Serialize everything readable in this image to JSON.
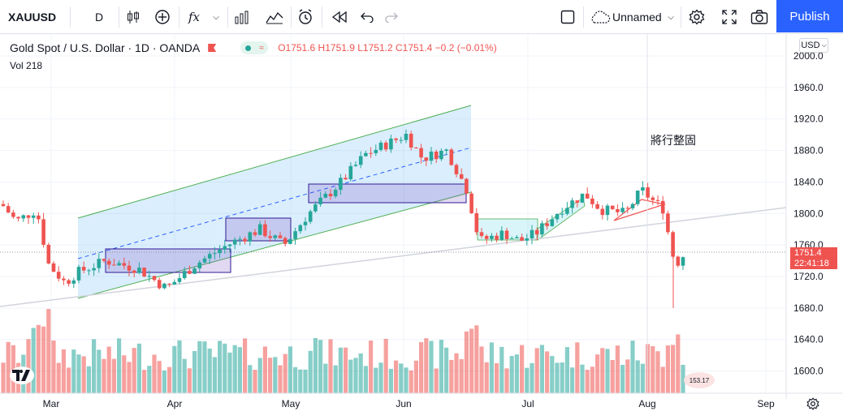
{
  "toolbar": {
    "symbol": "XAUUSD",
    "interval": "D",
    "fx_label": "fx",
    "layout_name": "Unnamed",
    "publish_label": "Publish"
  },
  "legend": {
    "title": "Gold Spot / U.S. Dollar · 1D · OANDA",
    "ohlc": "O1751.6 H1751.9 L1751.2 C1751.4 −0.2 (−0.01%)",
    "volume": "Vol  218"
  },
  "price_axis": {
    "currency": "USD",
    "labels": [
      "2000.0",
      "1960.0",
      "1920.0",
      "1880.0",
      "1840.0",
      "1800.0",
      "1760.0",
      "1720.0",
      "1680.0",
      "1640.0",
      "1600.0"
    ],
    "last_price": "1751.4",
    "countdown": "22:41:18"
  },
  "time_axis": {
    "labels": [
      "Mar",
      "Apr",
      "May",
      "Jun",
      "Jul",
      "Aug",
      "Sep"
    ]
  },
  "annotation": "將行整固",
  "volume_badge": "153.17",
  "colors": {
    "up": "#26a69a",
    "down": "#ef5350",
    "accent": "#2962ff",
    "channel": "#4caf50"
  }
}
